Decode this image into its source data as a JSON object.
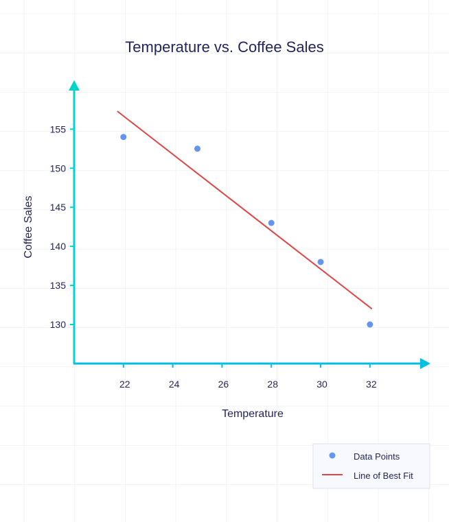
{
  "chart_data": {
    "type": "scatter",
    "title": "Temperature vs. Coffee Sales",
    "xlabel": "Temperature",
    "ylabel": "Coffee Sales",
    "x_ticks": [
      22,
      24,
      26,
      28,
      30,
      32
    ],
    "y_ticks": [
      130,
      135,
      140,
      145,
      150,
      155
    ],
    "xlim": [
      20,
      34.4
    ],
    "ylim": [
      125,
      161
    ],
    "grid": true,
    "legend_position": "bottom-right",
    "series": [
      {
        "name": "Data Points",
        "type": "scatter",
        "color": "#6495f0",
        "x": [
          22,
          25,
          28,
          30,
          32
        ],
        "y": [
          154,
          152.5,
          143,
          138,
          130
        ]
      },
      {
        "name": "Line of Best Fit",
        "type": "line",
        "color": "#e04444",
        "x": [
          21.75,
          32.08
        ],
        "y": [
          157.3,
          132.0
        ]
      }
    ],
    "axis_colors": {
      "y": "#00d4c8",
      "x": "#00bfe0"
    }
  }
}
